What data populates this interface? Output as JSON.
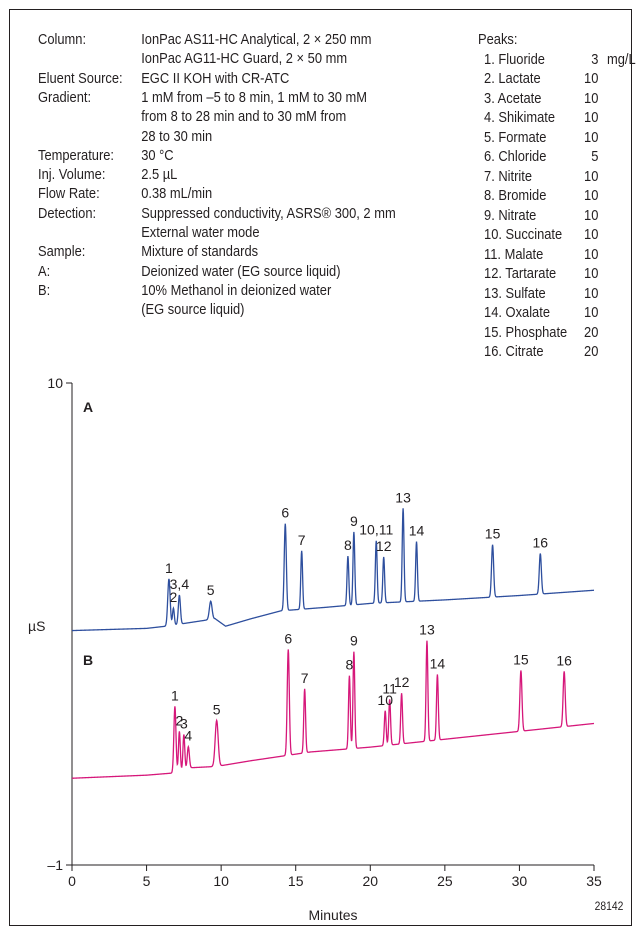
{
  "conditions": [
    {
      "label": "Column:",
      "lines": [
        "IonPac AS11-HC Analytical, 2 × 250 mm",
        "IonPac AG11-HC Guard, 2 × 50 mm"
      ]
    },
    {
      "label": "Eluent Source:",
      "lines": [
        "EGC II KOH with CR-ATC"
      ]
    },
    {
      "label": "Gradient:",
      "lines": [
        "1 mM from –5 to 8 min, 1 mM to 30 mM",
        "from 8 to 28 min and to 30 mM from",
        "28 to 30 min"
      ]
    },
    {
      "label": "Temperature:",
      "lines": [
        "30 °C"
      ]
    },
    {
      "label": "Inj. Volume:",
      "lines": [
        "2.5 µL"
      ]
    },
    {
      "label": "Flow Rate:",
      "lines": [
        "0.38 mL/min"
      ]
    },
    {
      "label": "Detection:",
      "lines": [
        "Suppressed conductivity, ASRS® 300, 2 mm",
        "External water mode"
      ]
    },
    {
      "label": "Sample:",
      "lines": [
        "Mixture of standards"
      ]
    },
    {
      "label": "A:",
      "lines": [
        "Deionized water (EG source liquid)"
      ]
    },
    {
      "label": "B:",
      "lines": [
        "10% Methanol in deionized water",
        "(EG source liquid)"
      ]
    }
  ],
  "peaks_table": {
    "title": "Peaks:",
    "unit": "mg/L",
    "rows": [
      {
        "name": "1. Fluoride",
        "amount": "3"
      },
      {
        "name": "2. Lactate",
        "amount": "10"
      },
      {
        "name": "3. Acetate",
        "amount": "10"
      },
      {
        "name": "4. Shikimate",
        "amount": "10"
      },
      {
        "name": "5. Formate",
        "amount": "10"
      },
      {
        "name": "6. Chloride",
        "amount": "5"
      },
      {
        "name": "7. Nitrite",
        "amount": "10"
      },
      {
        "name": "8. Bromide",
        "amount": "10"
      },
      {
        "name": "9. Nitrate",
        "amount": "10"
      },
      {
        "name": "10. Succinate",
        "amount": "10"
      },
      {
        "name": "11. Malate",
        "amount": "10"
      },
      {
        "name": "12. Tartarate",
        "amount": "10"
      },
      {
        "name": "13. Sulfate",
        "amount": "10"
      },
      {
        "name": "14. Oxalate",
        "amount": "10"
      },
      {
        "name": "15. Phosphate",
        "amount": "20"
      },
      {
        "name": "16. Citrate",
        "amount": "20"
      }
    ]
  },
  "figure_id": "28142",
  "chart_data": {
    "type": "line",
    "xlabel": "Minutes",
    "ylabel": "µS",
    "xlim": [
      0,
      35
    ],
    "ylim": [
      -1,
      10
    ],
    "xticks": [
      0,
      5,
      10,
      15,
      20,
      25,
      30,
      35
    ],
    "yticks": [
      {
        "value": 10,
        "label": "10"
      },
      {
        "value": -1,
        "label": "–1"
      }
    ],
    "grid": false,
    "series": [
      {
        "name": "A",
        "color": "#2e4f9e",
        "baseline": [
          [
            0,
            4.35
          ],
          [
            5,
            4.4
          ],
          [
            6.3,
            4.45
          ],
          [
            9.6,
            4.62
          ],
          [
            10.3,
            4.45
          ],
          [
            12,
            4.62
          ],
          [
            14,
            4.8
          ],
          [
            17,
            4.88
          ],
          [
            20,
            4.97
          ],
          [
            25,
            5.05
          ],
          [
            30,
            5.15
          ],
          [
            35,
            5.27
          ]
        ],
        "peaks": [
          {
            "label": "1",
            "t": 6.5,
            "y": 5.53,
            "w": 0.08
          },
          {
            "label": "2",
            "t": 6.8,
            "y": 4.86,
            "w": 0.06
          },
          {
            "label": "3,4",
            "t": 7.2,
            "y": 5.16,
            "w": 0.07
          },
          {
            "label": "5",
            "t": 9.3,
            "y": 5.02,
            "w": 0.09
          },
          {
            "label": "6",
            "t": 14.3,
            "y": 6.79,
            "w": 0.07
          },
          {
            "label": "7",
            "t": 15.4,
            "y": 6.17,
            "w": 0.06
          },
          {
            "label": "8",
            "t": 18.5,
            "y": 6.05,
            "w": 0.06
          },
          {
            "label": "9",
            "t": 18.9,
            "y": 6.6,
            "w": 0.06
          },
          {
            "label": "10,11",
            "t": 20.4,
            "y": 6.4,
            "w": 0.06
          },
          {
            "label": "12",
            "t": 20.9,
            "y": 6.03,
            "w": 0.06
          },
          {
            "label": "13",
            "t": 22.2,
            "y": 7.14,
            "w": 0.06
          },
          {
            "label": "14",
            "t": 23.1,
            "y": 6.38,
            "w": 0.06
          },
          {
            "label": "15",
            "t": 28.2,
            "y": 6.31,
            "w": 0.07
          },
          {
            "label": "16",
            "t": 31.4,
            "y": 6.11,
            "w": 0.07
          }
        ]
      },
      {
        "name": "B",
        "color": "#d6177a",
        "baseline": [
          [
            0,
            0.98
          ],
          [
            5,
            1.05
          ],
          [
            6.8,
            1.1
          ],
          [
            8.0,
            1.22
          ],
          [
            9.7,
            1.25
          ],
          [
            12,
            1.38
          ],
          [
            14,
            1.48
          ],
          [
            16,
            1.58
          ],
          [
            20,
            1.69
          ],
          [
            25,
            1.87
          ],
          [
            30,
            2.05
          ],
          [
            35,
            2.23
          ]
        ],
        "peaks": [
          {
            "label": "1",
            "t": 6.9,
            "y": 2.62,
            "w": 0.07
          },
          {
            "label": "2",
            "t": 7.2,
            "y": 2.05,
            "w": 0.06
          },
          {
            "label": "3",
            "t": 7.5,
            "y": 1.98,
            "w": 0.06
          },
          {
            "label": "4",
            "t": 7.8,
            "y": 1.7,
            "w": 0.07
          },
          {
            "label": "5",
            "t": 9.7,
            "y": 2.3,
            "w": 0.1
          },
          {
            "label": "6",
            "t": 14.5,
            "y": 3.92,
            "w": 0.07
          },
          {
            "label": "7",
            "t": 15.6,
            "y": 3.02,
            "w": 0.06
          },
          {
            "label": "8",
            "t": 18.6,
            "y": 3.32,
            "w": 0.06
          },
          {
            "label": "9",
            "t": 18.9,
            "y": 3.87,
            "w": 0.06
          },
          {
            "label": "10",
            "t": 21.0,
            "y": 2.52,
            "w": 0.06
          },
          {
            "label": "11",
            "t": 21.3,
            "y": 2.78,
            "w": 0.06
          },
          {
            "label": "12",
            "t": 22.1,
            "y": 2.92,
            "w": 0.06
          },
          {
            "label": "13",
            "t": 23.8,
            "y": 4.12,
            "w": 0.06
          },
          {
            "label": "14",
            "t": 24.5,
            "y": 3.35,
            "w": 0.06
          },
          {
            "label": "15",
            "t": 30.1,
            "y": 3.44,
            "w": 0.07
          },
          {
            "label": "16",
            "t": 33.0,
            "y": 3.42,
            "w": 0.07
          }
        ]
      }
    ]
  }
}
